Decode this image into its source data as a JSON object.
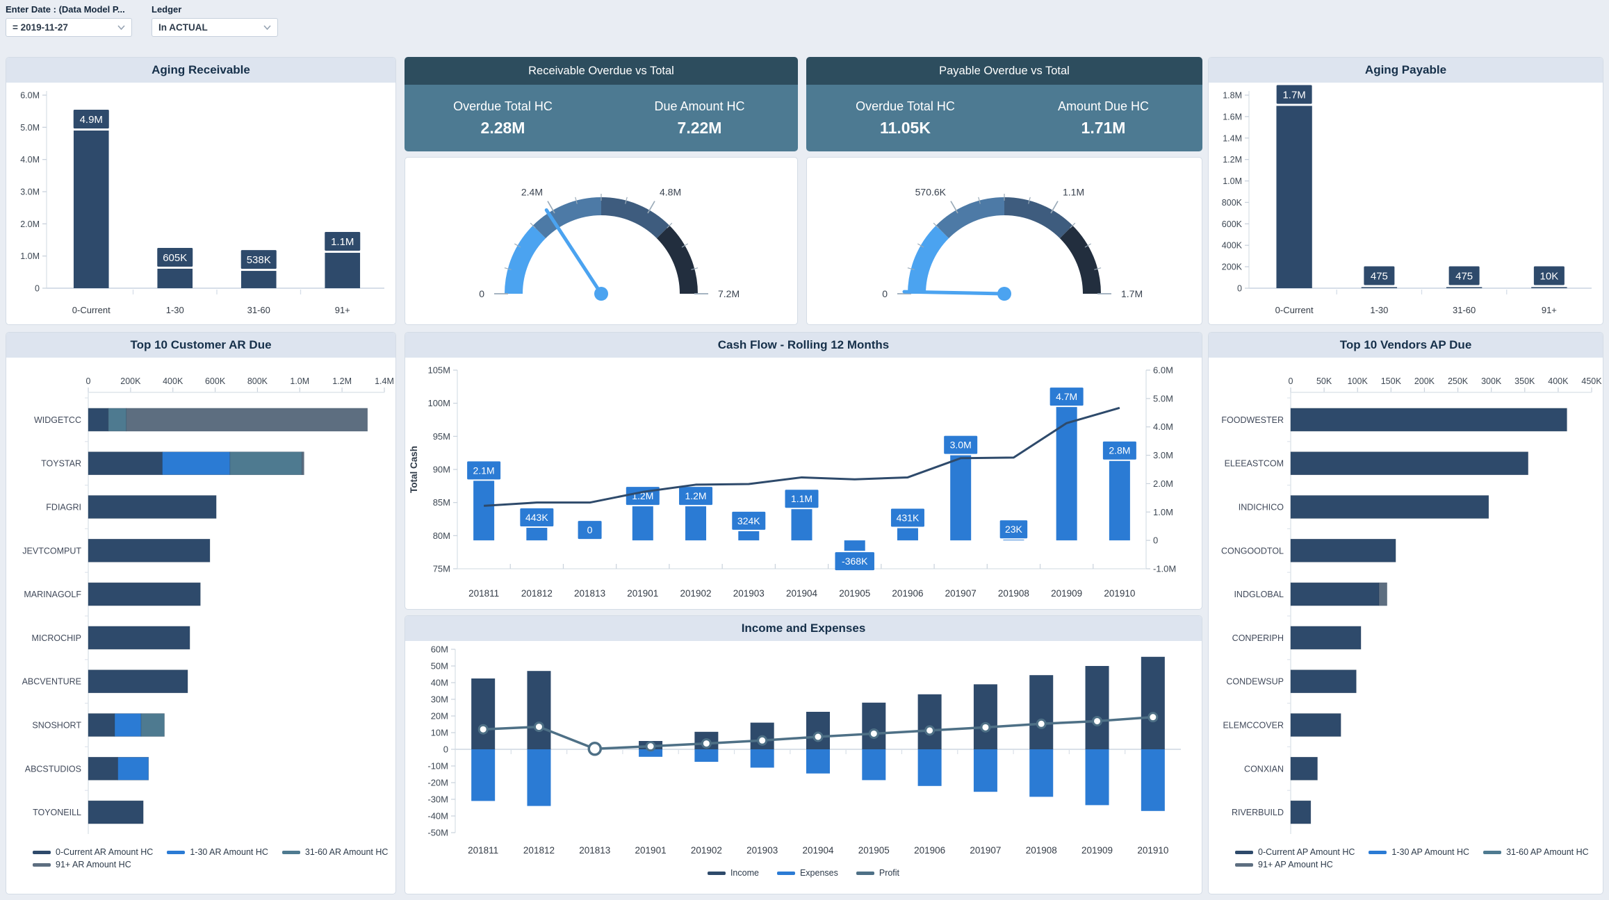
{
  "filters": {
    "date_label": "Enter Date : (Data Model P...",
    "date_value": "= 2019-11-27",
    "ledger_label": "Ledger",
    "ledger_value": "In ACTUAL"
  },
  "kpi_cards": {
    "receivable": {
      "title": "Receivable Overdue vs Total",
      "left_label": "Overdue Total HC",
      "left_value": "2.28M",
      "right_label": "Due Amount HC",
      "right_value": "7.22M"
    },
    "payable": {
      "title": "Payable Overdue vs Total",
      "left_label": "Overdue Total HC",
      "left_value": "11.05K",
      "right_label": "Amount Due HC",
      "right_value": "1.71M"
    }
  },
  "colors": {
    "navy": "#2e4a6b",
    "blue": "#2b7bd4",
    "teal": "#4e7a90",
    "gray": "#5d6e80",
    "profit": "#4e7086",
    "needle": "#4ba3f0",
    "gauge": [
      "#4ba3f0",
      "#4d7aa6",
      "#3e5c7e",
      "#222e3e"
    ],
    "kpi_header": "#2d4d5e",
    "kpi_body": "#4d7a92",
    "axis_line": "#dfe5ec",
    "tick_text": "#3d4753"
  },
  "chart_data": [
    {
      "id": "aging_receivable",
      "type": "bar",
      "title": "Aging Receivable",
      "categories": [
        "0-Current",
        "1-30",
        "31-60",
        "91+"
      ],
      "values": [
        4900000,
        605000,
        538000,
        1100000
      ],
      "labels": [
        "4.9M",
        "605K",
        "538K",
        "1.1M"
      ],
      "ylim": [
        0,
        6000000
      ],
      "ytick_labels": [
        "0",
        "1.0M",
        "2.0M",
        "3.0M",
        "4.0M",
        "5.0M",
        "6.0M"
      ],
      "xlabel": "",
      "ylabel": ""
    },
    {
      "id": "receivable_gauge",
      "type": "gauge",
      "min": 0,
      "max": 7220000,
      "value": 2280000,
      "tick_labels": [
        "0",
        "2.4M",
        "4.8M",
        "7.2M"
      ]
    },
    {
      "id": "payable_gauge",
      "type": "gauge",
      "min": 0,
      "max": 1712000,
      "value": 11050,
      "tick_labels": [
        "0",
        "570.6K",
        "1.1M",
        "1.7M"
      ]
    },
    {
      "id": "aging_payable",
      "type": "bar",
      "title": "Aging Payable",
      "categories": [
        "0-Current",
        "1-30",
        "31-60",
        "91+"
      ],
      "values": [
        1700000,
        475,
        475,
        10000
      ],
      "labels": [
        "1.7M",
        "475",
        "475",
        "10K"
      ],
      "ylim": [
        0,
        1800000
      ],
      "ytick_labels": [
        "0",
        "200K",
        "400K",
        "600K",
        "800K",
        "1.0M",
        "1.2M",
        "1.4M",
        "1.6M",
        "1.8M"
      ],
      "xlabel": "",
      "ylabel": ""
    },
    {
      "id": "customer_ar",
      "type": "bar",
      "orientation": "horizontal",
      "stacked": true,
      "title": "Top 10 Customer AR Due",
      "categories": [
        "WIDGETCC",
        "TOYSTAR",
        "FDIAGRI",
        "JEVTCOMPUT",
        "MARINAGOLF",
        "MICROCHIP",
        "ABCVENTURE",
        "SNOSHORT",
        "ABCSTUDIOS",
        "TOYONEILL"
      ],
      "series": [
        {
          "name": "0-Current AR Amount HC",
          "color": "navy",
          "values": [
            95000,
            350000,
            605000,
            575000,
            530000,
            480000,
            470000,
            125000,
            140000,
            260000
          ]
        },
        {
          "name": "1-30 AR Amount HC",
          "color": "blue",
          "values": [
            0,
            320000,
            0,
            0,
            0,
            0,
            0,
            125000,
            145000,
            0
          ]
        },
        {
          "name": "31-60 AR Amount HC",
          "color": "teal",
          "values": [
            85000,
            340000,
            0,
            0,
            0,
            0,
            0,
            110000,
            0,
            0
          ]
        },
        {
          "name": "91+ AR Amount HC",
          "color": "gray",
          "values": [
            1140000,
            10000,
            0,
            0,
            0,
            0,
            0,
            0,
            0,
            0
          ]
        }
      ],
      "xlim": [
        0,
        1400000
      ],
      "xtick_labels": [
        "0",
        "200K",
        "400K",
        "600K",
        "800K",
        "1.0M",
        "1.2M",
        "1.4M"
      ],
      "legend_position": "bottom"
    },
    {
      "id": "cash_flow",
      "type": "bar",
      "subtype": "bar+line",
      "title": "Cash Flow - Rolling 12 Months",
      "categories": [
        "201811",
        "201812",
        "201813",
        "201901",
        "201902",
        "201903",
        "201904",
        "201905",
        "201906",
        "201907",
        "201908",
        "201909",
        "201910"
      ],
      "bar_series_name": "Cash Flow",
      "bar_values": [
        2100000,
        443000,
        0,
        1200000,
        1200000,
        324000,
        1100000,
        -368000,
        431000,
        3000000,
        23000,
        4700000,
        2800000
      ],
      "bar_labels": [
        "2.1M",
        "443K",
        "0",
        "1.2M",
        "1.2M",
        "324K",
        "1.1M",
        "-368K",
        "431K",
        "3.0M",
        "23K",
        "4.7M",
        "2.8M"
      ],
      "line_series_name": "Total Cash",
      "line_values_millions": [
        84.5,
        85.0,
        85.0,
        86.6,
        87.7,
        87.8,
        88.8,
        88.5,
        88.8,
        91.7,
        91.8,
        97.0,
        99.3
      ],
      "left_axis": {
        "label": "Total Cash",
        "min": 75,
        "max": 105,
        "tick_labels": [
          "75M",
          "80M",
          "85M",
          "90M",
          "95M",
          "100M",
          "105M"
        ]
      },
      "right_axis": {
        "min": -1,
        "max": 6,
        "tick_labels": [
          "-1.0M",
          "0",
          "1.0M",
          "2.0M",
          "3.0M",
          "4.0M",
          "5.0M",
          "6.0M"
        ]
      }
    },
    {
      "id": "income_expenses",
      "type": "bar",
      "subtype": "bar+line",
      "title": "Income and Expenses",
      "categories": [
        "201811",
        "201812",
        "201813",
        "201901",
        "201902",
        "201903",
        "201904",
        "201905",
        "201906",
        "201907",
        "201908",
        "201909",
        "201910"
      ],
      "series": [
        {
          "name": "Income",
          "color": "navy",
          "values_millions": [
            42.5,
            47.0,
            0,
            5.0,
            10.5,
            16.0,
            22.5,
            28.0,
            33.0,
            39.0,
            44.5,
            50.0,
            55.5
          ]
        },
        {
          "name": "Expenses",
          "color": "blue",
          "values_millions": [
            -31.0,
            -34.0,
            0,
            -4.5,
            -7.5,
            -11.0,
            -14.5,
            -18.5,
            -22.0,
            -25.5,
            -28.5,
            -33.5,
            -37.0
          ]
        },
        {
          "name": "Profit",
          "color": "profit",
          "values_millions": [
            12.0,
            13.5,
            0.3,
            1.8,
            3.5,
            5.3,
            7.5,
            9.4,
            11.3,
            13.2,
            15.3,
            16.9,
            19.3
          ]
        }
      ],
      "ylim": [
        -50,
        60
      ],
      "ytick_labels": [
        "60M",
        "50M",
        "40M",
        "30M",
        "20M",
        "10M",
        "0",
        "-10M",
        "-20M",
        "-30M",
        "-40M",
        "-50M"
      ],
      "legend": [
        "Income",
        "Expenses",
        "Profit"
      ],
      "legend_position": "bottom"
    },
    {
      "id": "vendors_ap",
      "type": "bar",
      "orientation": "horizontal",
      "stacked": true,
      "title": "Top 10 Vendors AP Due",
      "categories": [
        "FOODWESTER",
        "ELEEASTCOM",
        "INDICHICO",
        "CONGOODTOL",
        "INDGLOBAL",
        "CONPERIPH",
        "CONDEWSUP",
        "ELEMCCOVER",
        "CONXIAN",
        "RIVERBUILD"
      ],
      "series": [
        {
          "name": "0-Current AP Amount HC",
          "color": "navy",
          "values": [
            413000,
            355000,
            296000,
            157000,
            132000,
            105000,
            98000,
            75000,
            40000,
            30000
          ]
        },
        {
          "name": "1-30 AP Amount HC",
          "color": "blue",
          "values": [
            0,
            0,
            0,
            0,
            0,
            0,
            0,
            0,
            0,
            0
          ]
        },
        {
          "name": "31-60 AP Amount HC",
          "color": "teal",
          "values": [
            0,
            0,
            0,
            0,
            0,
            0,
            0,
            0,
            0,
            0
          ]
        },
        {
          "name": "91+ AP Amount HC",
          "color": "gray",
          "values": [
            0,
            0,
            0,
            0,
            12000,
            0,
            0,
            0,
            0,
            0
          ]
        }
      ],
      "xlim": [
        0,
        450000
      ],
      "xtick_labels": [
        "0",
        "50K",
        "100K",
        "150K",
        "200K",
        "250K",
        "300K",
        "350K",
        "400K",
        "450K"
      ],
      "legend_position": "bottom"
    }
  ]
}
